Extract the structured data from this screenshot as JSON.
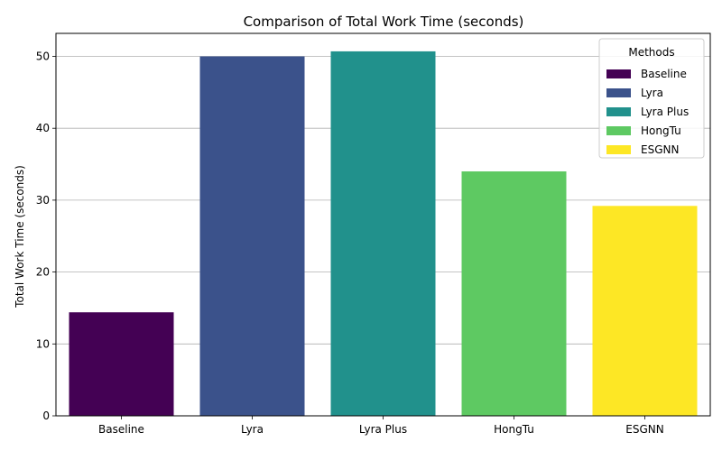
{
  "chart_data": {
    "type": "bar",
    "title": "Comparison of Total Work Time (seconds)",
    "xlabel": "",
    "ylabel": "Total Work Time (seconds)",
    "categories": [
      "Baseline",
      "Lyra",
      "Lyra Plus",
      "HongTu",
      "ESGNN"
    ],
    "values": [
      14.4,
      50.0,
      50.7,
      34.0,
      29.2
    ],
    "colors": [
      "#440154",
      "#3b528b",
      "#21918c",
      "#5ec962",
      "#fde725"
    ],
    "ylim": [
      0,
      53.2
    ],
    "yticks": [
      0,
      10,
      20,
      30,
      40,
      50
    ],
    "grid": "y-major",
    "legend": {
      "title": "Methods",
      "placement": "top-right",
      "entries": [
        "Baseline",
        "Lyra",
        "Lyra Plus",
        "HongTu",
        "ESGNN"
      ]
    }
  }
}
